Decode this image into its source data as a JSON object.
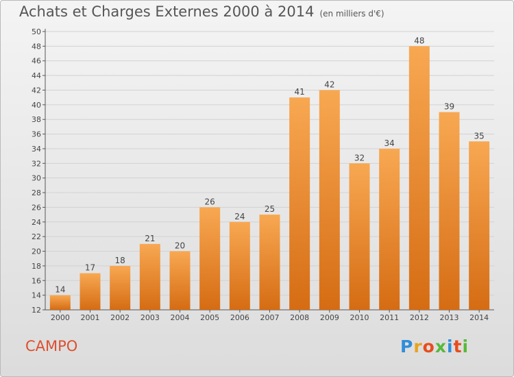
{
  "title": "Achats et Charges Externes 2000 à 2014",
  "unit_note": "(en milliers d'€)",
  "commune": "CAMPO",
  "brand": "Proxiti",
  "colors": {
    "bar_top": "#f8a852",
    "bar_bottom": "#d56c13",
    "title": "#555555",
    "commune": "#dd4f2f",
    "logo": [
      "#2f8ed8",
      "#e8a31f",
      "#e84c1c",
      "#57b93a",
      "#2f8ed8",
      "#e84c1c",
      "#57b93a"
    ]
  },
  "chart_data": {
    "type": "bar",
    "title": "Achats et Charges Externes 2000 à 2014",
    "subtitle": "(en milliers d'€)",
    "xlabel": "",
    "ylabel": "",
    "categories": [
      "2000",
      "2001",
      "2002",
      "2003",
      "2004",
      "2005",
      "2006",
      "2007",
      "2008",
      "2009",
      "2010",
      "2011",
      "2012",
      "2013",
      "2014"
    ],
    "values": [
      14,
      17,
      18,
      21,
      20,
      26,
      24,
      25,
      41,
      42,
      32,
      34,
      48,
      39,
      35
    ],
    "ylim": [
      12,
      50
    ],
    "yticks": [
      12,
      14,
      16,
      18,
      20,
      22,
      24,
      26,
      28,
      30,
      32,
      34,
      36,
      38,
      40,
      42,
      44,
      46,
      48,
      50
    ],
    "grid": true,
    "data_labels": true
  }
}
